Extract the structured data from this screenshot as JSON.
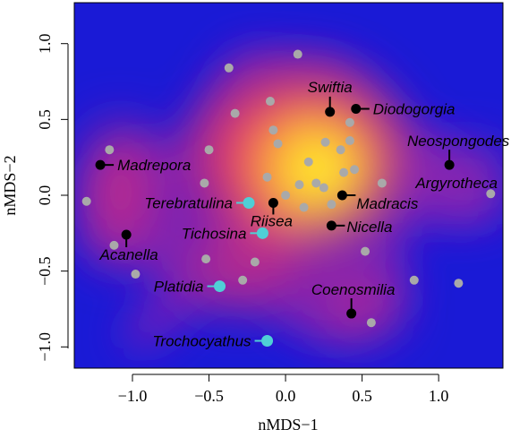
{
  "chart_data": {
    "type": "scatter",
    "title": "",
    "xlabel": "nMDS−1",
    "ylabel": "nMDS−2",
    "xlim": [
      -1.38,
      1.42
    ],
    "ylim": [
      -1.14,
      1.27
    ],
    "x_ticks": [
      {
        "value": -1.0,
        "label": "−1.0"
      },
      {
        "value": -0.5,
        "label": "−0.5"
      },
      {
        "value": 0.0,
        "label": "0.0"
      },
      {
        "value": 0.5,
        "label": "0.5"
      },
      {
        "value": 1.0,
        "label": "1.0"
      }
    ],
    "y_ticks": [
      {
        "value": -1.0,
        "label": "−1.0"
      },
      {
        "value": -0.5,
        "label": "−0.5"
      },
      {
        "value": 0.0,
        "label": "0.0"
      },
      {
        "value": 0.5,
        "label": "0.5"
      },
      {
        "value": 1.0,
        "label": "1.0"
      }
    ],
    "background": "2D point-density heatmap (blue → magenta → orange → yellow)",
    "colors": {
      "unlabeled_points": "#a9a9a9",
      "coral_points": "#000000",
      "brachiopod_points": "#4fcfd6",
      "density_low": "#1a1ad6",
      "density_high": "#ffff33"
    },
    "series": [
      {
        "group": "unlabeled",
        "points": [
          {
            "x": -1.3,
            "y": -0.04
          },
          {
            "x": -1.15,
            "y": 0.3
          },
          {
            "x": -1.12,
            "y": -0.33
          },
          {
            "x": -0.98,
            "y": -0.52
          },
          {
            "x": -0.52,
            "y": -0.42
          },
          {
            "x": -0.53,
            "y": 0.08
          },
          {
            "x": -0.5,
            "y": 0.3
          },
          {
            "x": -0.37,
            "y": 0.84
          },
          {
            "x": -0.33,
            "y": 0.54
          },
          {
            "x": -0.28,
            "y": -0.56
          },
          {
            "x": -0.2,
            "y": -0.44
          },
          {
            "x": -0.1,
            "y": 0.62
          },
          {
            "x": -0.08,
            "y": 0.43
          },
          {
            "x": -0.05,
            "y": 0.34
          },
          {
            "x": -0.12,
            "y": 0.12
          },
          {
            "x": 0.0,
            "y": 0.0
          },
          {
            "x": 0.08,
            "y": 0.93
          },
          {
            "x": 0.09,
            "y": 0.07
          },
          {
            "x": 0.12,
            "y": -0.08
          },
          {
            "x": 0.15,
            "y": 0.22
          },
          {
            "x": 0.2,
            "y": 0.08
          },
          {
            "x": 0.26,
            "y": 0.35
          },
          {
            "x": 0.25,
            "y": 0.05
          },
          {
            "x": 0.3,
            "y": -0.06
          },
          {
            "x": 0.36,
            "y": 0.3
          },
          {
            "x": 0.38,
            "y": 0.15
          },
          {
            "x": 0.42,
            "y": 0.36
          },
          {
            "x": 0.42,
            "y": 0.48
          },
          {
            "x": 0.45,
            "y": 0.17
          },
          {
            "x": 0.52,
            "y": -0.37
          },
          {
            "x": 0.56,
            "y": -0.84
          },
          {
            "x": 0.63,
            "y": 0.08
          },
          {
            "x": 0.84,
            "y": -0.56
          },
          {
            "x": 1.13,
            "y": -0.58
          },
          {
            "x": 1.34,
            "y": 0.01
          }
        ]
      },
      {
        "group": "coral",
        "points": [
          {
            "name": "Swiftia",
            "x": 0.29,
            "y": 0.55
          },
          {
            "name": "Diodogorgia",
            "x": 0.46,
            "y": 0.57
          },
          {
            "name": "Neospongodes",
            "x": 1.07,
            "y": 0.2
          },
          {
            "name": "Madrepora",
            "x": -1.21,
            "y": 0.2
          },
          {
            "name": "Madracis",
            "x": 0.37,
            "y": 0.0
          },
          {
            "name": "Riisea",
            "x": -0.08,
            "y": -0.05
          },
          {
            "name": "Nicella",
            "x": 0.3,
            "y": -0.2
          },
          {
            "name": "Acanella",
            "x": -1.04,
            "y": -0.26
          },
          {
            "name": "Coenosmilia",
            "x": 0.43,
            "y": -0.78
          }
        ]
      },
      {
        "group": "brachiopod",
        "points": [
          {
            "name": "Terebratulina",
            "x": -0.24,
            "y": -0.05
          },
          {
            "name": "Tichosina",
            "x": -0.15,
            "y": -0.25
          },
          {
            "name": "Platidia",
            "x": -0.43,
            "y": -0.6
          },
          {
            "name": "Trochocyathus",
            "x": -0.12,
            "y": -0.96
          }
        ]
      }
    ],
    "annotations": [
      "Argyrotheca"
    ]
  }
}
